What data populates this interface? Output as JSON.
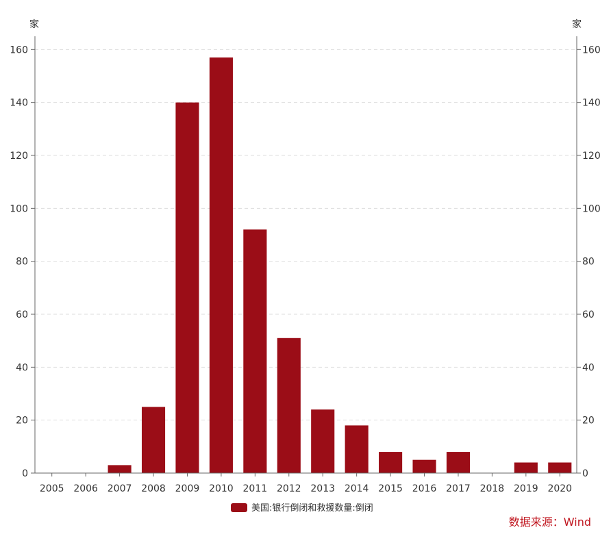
{
  "chart_data": {
    "type": "bar",
    "categories": [
      "2005",
      "2006",
      "2007",
      "2008",
      "2009",
      "2010",
      "2011",
      "2012",
      "2013",
      "2014",
      "2015",
      "2016",
      "2017",
      "2018",
      "2019",
      "2020"
    ],
    "series": [
      {
        "name": "美国:银行倒闭和救援数量:倒闭",
        "values": [
          0,
          0,
          3,
          25,
          140,
          157,
          92,
          51,
          24,
          18,
          8,
          5,
          8,
          0,
          4,
          4
        ]
      }
    ],
    "ylim": [
      0,
      165
    ],
    "yticks": [
      0,
      20,
      40,
      60,
      80,
      100,
      120,
      140,
      160
    ],
    "ylabel_left": "家",
    "ylabel_right": "家",
    "grid": true,
    "legend": "bottom-center",
    "colors": {
      "bar": "#9b0d17",
      "grid": "#dddddd",
      "axis": "#666666"
    }
  },
  "source_text": "数据来源：Wind",
  "source_color": "#c0161f"
}
